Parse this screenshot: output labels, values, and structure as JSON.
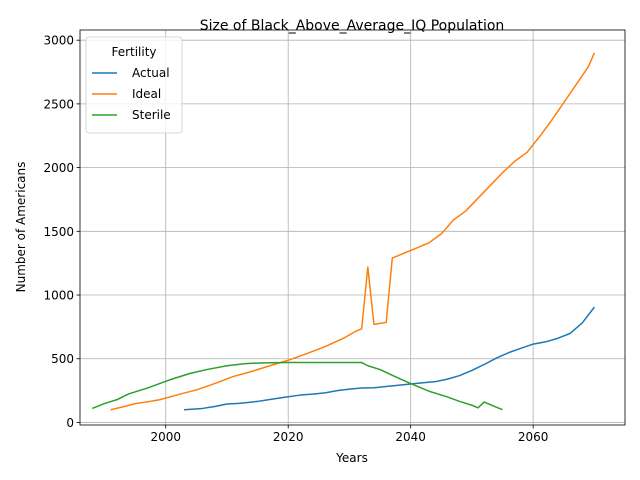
{
  "chart_data": {
    "type": "line",
    "title": "Size of Black_Above_Average_IQ Population",
    "xlabel": "Years",
    "ylabel": "Number of Americans",
    "xlim": [
      1986,
      2075
    ],
    "ylim": [
      -20,
      3080
    ],
    "xticks": [
      2000,
      2020,
      2040,
      2060
    ],
    "yticks": [
      0,
      500,
      1000,
      1500,
      2000,
      2500,
      3000
    ],
    "grid": true,
    "legend": {
      "title": "Fertility",
      "placement": "top-left"
    },
    "series": [
      {
        "name": "Actual",
        "color": "#1f77b4",
        "points": [
          [
            2003,
            100
          ],
          [
            2006,
            110
          ],
          [
            2008,
            125
          ],
          [
            2010,
            145
          ],
          [
            2012,
            150
          ],
          [
            2015,
            165
          ],
          [
            2017,
            180
          ],
          [
            2019,
            195
          ],
          [
            2022,
            215
          ],
          [
            2024,
            222
          ],
          [
            2026,
            232
          ],
          [
            2028,
            250
          ],
          [
            2030,
            262
          ],
          [
            2032,
            270
          ],
          [
            2034,
            272
          ],
          [
            2036,
            282
          ],
          [
            2038,
            292
          ],
          [
            2040,
            302
          ],
          [
            2042,
            312
          ],
          [
            2044,
            320
          ],
          [
            2046,
            340
          ],
          [
            2048,
            368
          ],
          [
            2050,
            408
          ],
          [
            2052,
            455
          ],
          [
            2054,
            505
          ],
          [
            2056,
            548
          ],
          [
            2058,
            582
          ],
          [
            2060,
            615
          ],
          [
            2062,
            632
          ],
          [
            2064,
            660
          ],
          [
            2066,
            698
          ],
          [
            2068,
            780
          ],
          [
            2070,
            905
          ]
        ]
      },
      {
        "name": "Ideal",
        "color": "#ff7f0e",
        "points": [
          [
            1991,
            100
          ],
          [
            1993,
            122
          ],
          [
            1995,
            148
          ],
          [
            1997,
            162
          ],
          [
            1999,
            178
          ],
          [
            2002,
            218
          ],
          [
            2005,
            255
          ],
          [
            2008,
            305
          ],
          [
            2011,
            360
          ],
          [
            2014,
            400
          ],
          [
            2017,
            445
          ],
          [
            2020,
            488
          ],
          [
            2023,
            540
          ],
          [
            2026,
            595
          ],
          [
            2029,
            660
          ],
          [
            2031,
            715
          ],
          [
            2032,
            735
          ],
          [
            2033,
            1220
          ],
          [
            2034,
            770
          ],
          [
            2036,
            785
          ],
          [
            2037,
            1290
          ],
          [
            2039,
            1330
          ],
          [
            2041,
            1370
          ],
          [
            2043,
            1410
          ],
          [
            2045,
            1480
          ],
          [
            2047,
            1590
          ],
          [
            2049,
            1660
          ],
          [
            2051,
            1760
          ],
          [
            2053,
            1860
          ],
          [
            2055,
            1960
          ],
          [
            2057,
            2050
          ],
          [
            2059,
            2120
          ],
          [
            2061,
            2240
          ],
          [
            2063,
            2370
          ],
          [
            2065,
            2510
          ],
          [
            2067,
            2650
          ],
          [
            2069,
            2790
          ],
          [
            2070,
            2900
          ]
        ]
      },
      {
        "name": "Sterile",
        "color": "#2ca02c",
        "points": [
          [
            1988,
            110
          ],
          [
            1990,
            148
          ],
          [
            1992,
            178
          ],
          [
            1994,
            225
          ],
          [
            1997,
            270
          ],
          [
            1999,
            305
          ],
          [
            2001,
            340
          ],
          [
            2004,
            385
          ],
          [
            2007,
            418
          ],
          [
            2010,
            445
          ],
          [
            2013,
            462
          ],
          [
            2016,
            468
          ],
          [
            2020,
            470
          ],
          [
            2025,
            470
          ],
          [
            2030,
            470
          ],
          [
            2032,
            470
          ],
          [
            2033,
            445
          ],
          [
            2035,
            415
          ],
          [
            2037,
            370
          ],
          [
            2040,
            305
          ],
          [
            2043,
            245
          ],
          [
            2046,
            200
          ],
          [
            2048,
            165
          ],
          [
            2050,
            135
          ],
          [
            2051,
            115
          ],
          [
            2052,
            160
          ],
          [
            2054,
            120
          ],
          [
            2055,
            100
          ]
        ]
      }
    ]
  }
}
